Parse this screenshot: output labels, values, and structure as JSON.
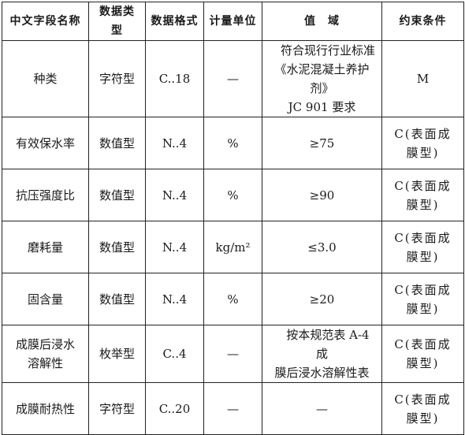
{
  "headers": [
    "中文字段名称",
    "数据类型",
    "数据格式",
    "计量单位",
    "值　域",
    "约束条件"
  ],
  "rows": [
    {
      "name": "种类",
      "type": "字符型",
      "format": "C..18",
      "unit": "—",
      "domain": "　符合现行行业标准\n《水泥混凝土养护剂》\nJC 901 要求",
      "constraint": "M"
    },
    {
      "name": "有效保水率",
      "type": "数值型",
      "format": "N..4",
      "unit": "%",
      "domain": "≥75",
      "constraint": "C(表面成\n膜型)"
    },
    {
      "name": "抗压强度比",
      "type": "数值型",
      "format": "N..4",
      "unit": "%",
      "domain": "≥90",
      "constraint": "C(表面成\n膜型)"
    },
    {
      "name": "磨耗量",
      "type": "数值型",
      "format": "N..4",
      "unit": "kg/m²",
      "domain": "≤3.0",
      "constraint": "C(表面成\n膜型)"
    },
    {
      "name": "固含量",
      "type": "数值型",
      "format": "N..4",
      "unit": "%",
      "domain": "≥20",
      "constraint": "C(表面成\n膜型)"
    },
    {
      "name": "成膜后浸水\n溶解性",
      "type": "枚举型",
      "format": "C..4",
      "unit": "—",
      "domain": "　按本规范表 A-4 成\n膜后浸水溶解性表",
      "constraint": "C(表面成\n膜型)"
    },
    {
      "name": "成膜耐热性",
      "type": "字符型",
      "format": "C..20",
      "unit": "—",
      "domain": "—",
      "constraint": "C(表面成\n膜型)"
    }
  ]
}
